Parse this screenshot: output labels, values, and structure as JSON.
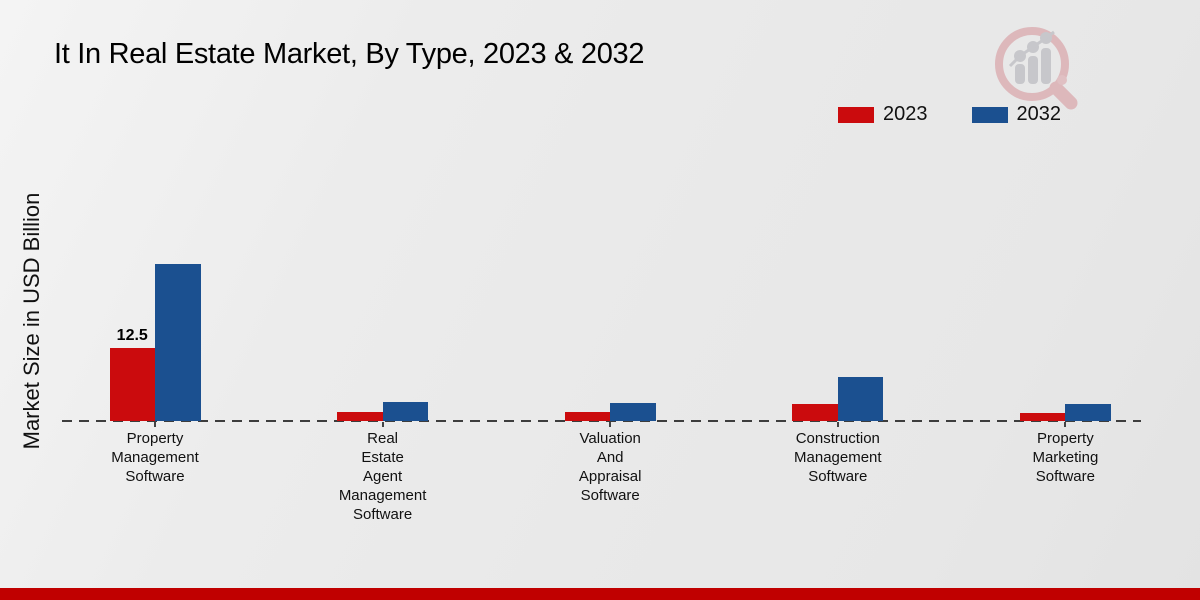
{
  "title": "It In Real Estate Market, By Type, 2023 & 2032",
  "ylabel": "Market Size in USD Billion",
  "chart_data": {
    "type": "bar",
    "categories": [
      [
        "Property",
        "Management",
        "Software"
      ],
      [
        "Real",
        "Estate",
        "Agent",
        "Management",
        "Software"
      ],
      [
        "Valuation",
        "And",
        "Appraisal",
        "Software"
      ],
      [
        "Construction",
        "Management",
        "Software"
      ],
      [
        "Property",
        "Marketing",
        "Software"
      ]
    ],
    "series": [
      {
        "name": "2023",
        "color": "#cb0b0d",
        "values": [
          12.5,
          1.5,
          1.5,
          2.9,
          1.4
        ]
      },
      {
        "name": "2032",
        "color": "#1b5090",
        "values": [
          27,
          3.2,
          3.1,
          7.5,
          3.0
        ]
      }
    ],
    "ylim": [
      0,
      30
    ],
    "grid": false,
    "baseline_style": "dashed",
    "legend_position": "top-right",
    "data_labels": [
      {
        "series_index": 0,
        "category_index": 0,
        "text": "12.5"
      }
    ]
  },
  "legend": {
    "items": [
      {
        "label": "2023",
        "color": "#cb0b0d"
      },
      {
        "label": "2032",
        "color": "#1b5090"
      }
    ]
  },
  "branding": {
    "logo_name": "magnifier-growth-chart-logo"
  },
  "footer": {
    "accent_bar_color": "#c00000"
  }
}
